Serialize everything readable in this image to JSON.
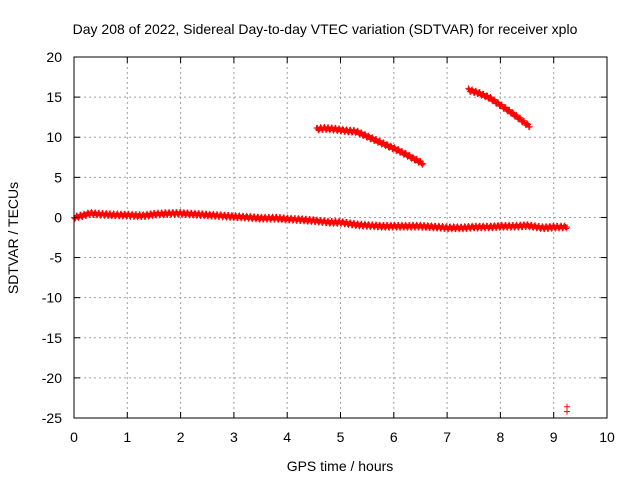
{
  "chart_data": {
    "type": "scatter",
    "title": "Day 208 of 2022, Sidereal Day-to-day VTEC variation (SDTVAR) for receiver xplo",
    "xlabel": "GPS time / hours",
    "ylabel": "SDTVAR / TECUs",
    "xlim": [
      0,
      10
    ],
    "ylim": [
      -25,
      20
    ],
    "xticks": [
      0,
      1,
      2,
      3,
      4,
      5,
      6,
      7,
      8,
      9,
      10
    ],
    "yticks": [
      -25,
      -20,
      -15,
      -10,
      -5,
      0,
      5,
      10,
      15,
      20
    ],
    "grid": true,
    "marker_color": "#ff0000",
    "series": [
      {
        "x": [
          0.0,
          0.2,
          0.3,
          0.5,
          0.8,
          1.0,
          1.3,
          1.5,
          1.8,
          2.0,
          2.3,
          2.5,
          2.8,
          3.0,
          3.3,
          3.5,
          3.8,
          4.0,
          4.3,
          4.5,
          4.8,
          5.0,
          5.3,
          5.5,
          5.8,
          6.0,
          6.3,
          6.5,
          6.8,
          7.0,
          7.3,
          7.5,
          7.8,
          8.0,
          8.3,
          8.5,
          8.8,
          9.0,
          9.25
        ],
        "y": [
          0.0,
          0.3,
          0.5,
          0.4,
          0.3,
          0.3,
          0.2,
          0.4,
          0.5,
          0.5,
          0.4,
          0.3,
          0.2,
          0.1,
          0.0,
          -0.1,
          -0.1,
          -0.2,
          -0.3,
          -0.4,
          -0.6,
          -0.6,
          -0.9,
          -1.0,
          -1.1,
          -1.1,
          -1.1,
          -1.1,
          -1.2,
          -1.3,
          -1.3,
          -1.2,
          -1.2,
          -1.1,
          -1.1,
          -1.0,
          -1.3,
          -1.2,
          -1.2
        ]
      },
      {
        "x": [
          4.55,
          4.7,
          4.9,
          5.1,
          5.3,
          5.5,
          5.7,
          5.9,
          6.1,
          6.3,
          6.55
        ],
        "y": [
          11.0,
          11.1,
          11.0,
          10.8,
          10.7,
          10.1,
          9.5,
          8.9,
          8.3,
          7.6,
          6.7
        ]
      },
      {
        "x": [
          7.4,
          7.6,
          7.8,
          8.0,
          8.2,
          8.4,
          8.55
        ],
        "y": [
          15.9,
          15.5,
          14.9,
          14.0,
          13.1,
          12.1,
          11.3
        ]
      },
      {
        "x": [
          9.25,
          9.25
        ],
        "y": [
          -23.6,
          -24.2
        ]
      }
    ]
  }
}
